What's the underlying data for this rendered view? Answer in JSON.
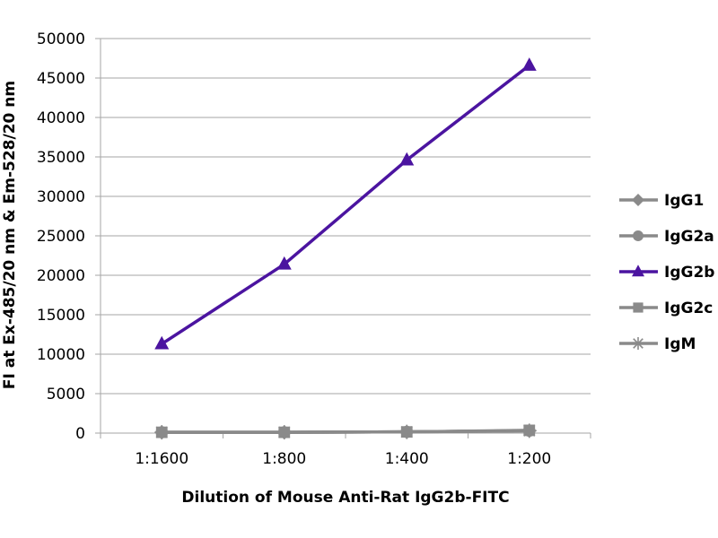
{
  "chart_data": {
    "type": "line",
    "categories": [
      "1:1600",
      "1:800",
      "1:400",
      "1:200"
    ],
    "ylim": [
      0,
      50000
    ],
    "yticks": [
      0,
      5000,
      10000,
      15000,
      20000,
      25000,
      30000,
      35000,
      40000,
      45000,
      50000
    ],
    "xlabel": "Dilution of Mouse Anti-Rat IgG2b-FITC",
    "ylabel": "FI at Ex-485/20 nm & Em-528/20 nm",
    "grid": true,
    "legend_position": "right",
    "series": [
      {
        "name": "IgG1",
        "marker": "diamond",
        "color": "#8a8a8a",
        "values": [
          100,
          100,
          150,
          300
        ]
      },
      {
        "name": "IgG2a",
        "marker": "circle",
        "color": "#8a8a8a",
        "values": [
          100,
          100,
          150,
          300
        ]
      },
      {
        "name": "IgG2b",
        "marker": "triangle",
        "color": "#4b14a0",
        "values": [
          11300,
          21400,
          34600,
          46600
        ]
      },
      {
        "name": "IgG2c",
        "marker": "square",
        "color": "#8a8a8a",
        "values": [
          100,
          100,
          150,
          350
        ]
      },
      {
        "name": "IgM",
        "marker": "star",
        "color": "#8a8a8a",
        "values": [
          100,
          100,
          150,
          300
        ]
      }
    ]
  }
}
